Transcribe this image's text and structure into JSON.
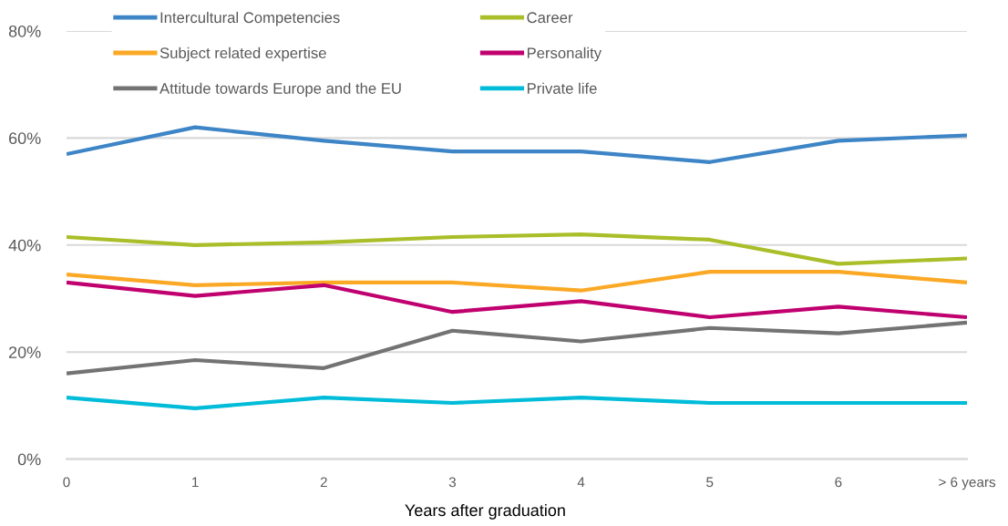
{
  "chart_data": {
    "type": "line",
    "xlabel": "Years after graduation",
    "categories": [
      "0",
      "1",
      "2",
      "3",
      "4",
      "5",
      "6",
      "> 6 years"
    ],
    "series": [
      {
        "name": "Intercultural Competencies",
        "color": "#3d85c6",
        "values": [
          57,
          62,
          59.5,
          57.5,
          57.5,
          55.5,
          59.5,
          60.5
        ]
      },
      {
        "name": "Career",
        "color": "#a9be28",
        "values": [
          41.5,
          40,
          40.5,
          41.5,
          42,
          41,
          36.5,
          37.5
        ]
      },
      {
        "name": "Subject related expertise",
        "color": "#fba825",
        "values": [
          34.5,
          32.5,
          33,
          33,
          31.5,
          35,
          35,
          33
        ]
      },
      {
        "name": "Personality",
        "color": "#c0006f",
        "values": [
          33,
          30.5,
          32.5,
          27.5,
          29.5,
          26.5,
          28.5,
          26.5
        ]
      },
      {
        "name": "Attitude towards Europe and the EU",
        "color": "#737373",
        "values": [
          16,
          18.5,
          17,
          24,
          22,
          24.5,
          23.5,
          25.5
        ]
      },
      {
        "name": "Private life",
        "color": "#00bcd9",
        "values": [
          11.5,
          9.5,
          11.5,
          10.5,
          11.5,
          10.5,
          10.5,
          10.5
        ]
      }
    ],
    "ylim": [
      0,
      80
    ],
    "yticks": [
      {
        "value": 0,
        "label": "0%"
      },
      {
        "value": 20,
        "label": "20%"
      },
      {
        "value": 40,
        "label": "40%"
      },
      {
        "value": 60,
        "label": "60%"
      },
      {
        "value": 80,
        "label": "80%"
      }
    ],
    "grid": "y",
    "legend": "top left",
    "marker": "none",
    "line_style": "solid"
  }
}
